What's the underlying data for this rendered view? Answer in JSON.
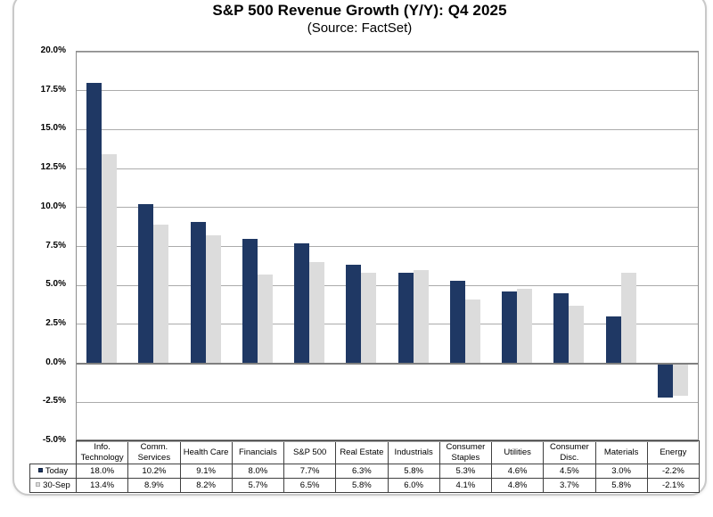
{
  "chart_data": {
    "type": "bar",
    "title": "S&P 500 Revenue Growth (Y/Y): Q4 2025",
    "subtitle": "(Source: FactSet)",
    "categories": [
      "Info. Technology",
      "Comm. Services",
      "Health Care",
      "Financials",
      "S&P 500",
      "Real Estate",
      "Industrials",
      "Consumer Staples",
      "Utilities",
      "Consumer Disc.",
      "Materials",
      "Energy"
    ],
    "series": [
      {
        "name": "Today",
        "color": "#1f3864",
        "swatch_border": "#10203d",
        "values": [
          18.0,
          10.2,
          9.1,
          8.0,
          7.7,
          6.3,
          5.8,
          5.3,
          4.6,
          4.5,
          3.0,
          -2.2
        ],
        "labels": [
          "18.0%",
          "10.2%",
          "9.1%",
          "8.0%",
          "7.7%",
          "6.3%",
          "5.8%",
          "5.3%",
          "4.6%",
          "4.5%",
          "3.0%",
          "-2.2%"
        ]
      },
      {
        "name": "30-Sep",
        "color": "#dcdcdc",
        "swatch_border": "#b0b0b0",
        "values": [
          13.4,
          8.9,
          8.2,
          5.7,
          6.5,
          5.8,
          6.0,
          4.1,
          4.8,
          3.7,
          5.8,
          -2.1
        ],
        "labels": [
          "13.4%",
          "8.9%",
          "8.2%",
          "5.7%",
          "6.5%",
          "5.8%",
          "6.0%",
          "4.1%",
          "4.8%",
          "3.7%",
          "5.8%",
          "-2.1%"
        ]
      }
    ],
    "y_axis": {
      "min": -5,
      "max": 20,
      "step": 2.5,
      "tick_labels": [
        "20.0%",
        "17.5%",
        "15.0%",
        "12.5%",
        "10.0%",
        "7.5%",
        "5.0%",
        "2.5%",
        "0.0%",
        "-2.5%",
        "-5.0%"
      ]
    },
    "grid": "horizontal-only",
    "legend_position": "table-left",
    "colors": {
      "gridline": "#ababab",
      "zero_line": "#7f7f7f",
      "plot_border": "#8c8c8c",
      "table_border": "#404040"
    }
  }
}
